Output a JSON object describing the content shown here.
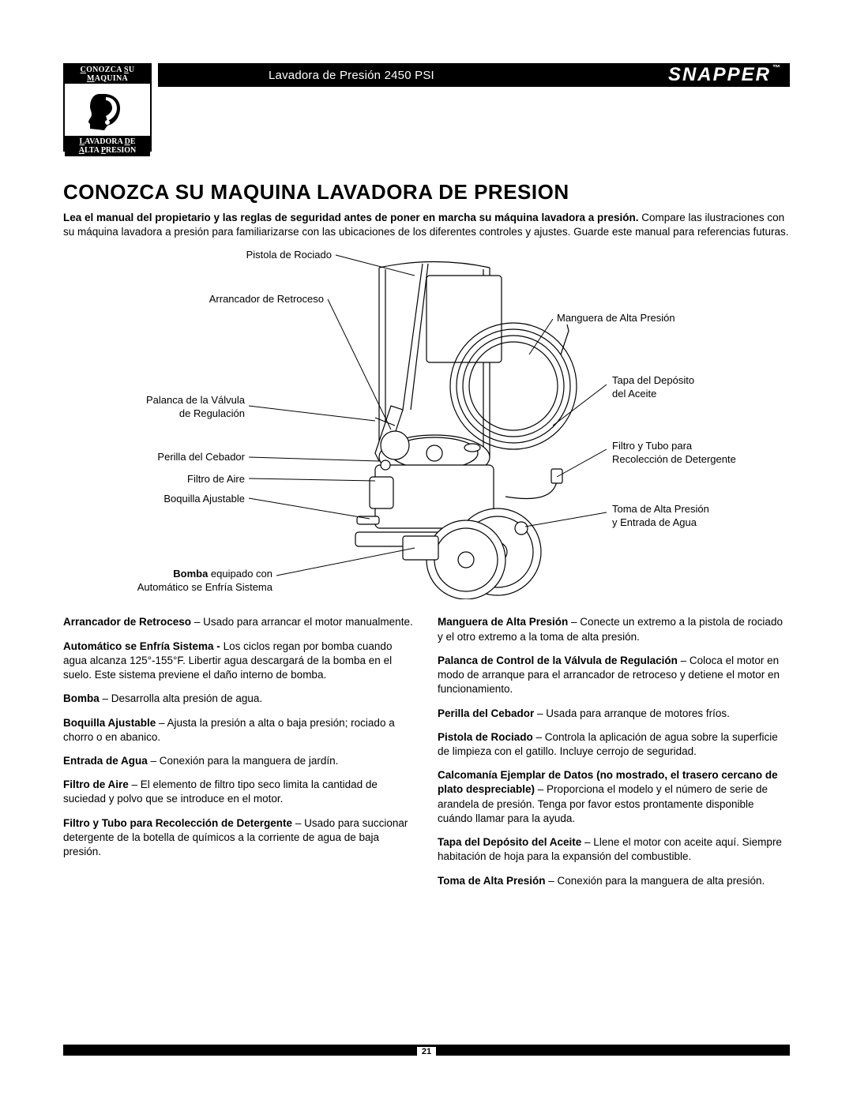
{
  "header": {
    "title": "Lavadora de Presión 2450 PSI",
    "brand": "SNAPPER",
    "brand_tm": "™"
  },
  "side_icon": {
    "top_line": "CONOZCA SU MAQUINA",
    "bottom_line1": "LAVADORA DE",
    "bottom_line2": "ALTA PRESION"
  },
  "title": "CONOZCA SU MAQUINA LAVADORA DE PRESION",
  "intro": {
    "bold": "Lea el manual del propietario y las reglas de seguridad antes de poner en marcha su máquina lavadora a presión.",
    "rest1": "Compare las ilustraciones con su máquina lavadora a presión para familiarizarse con las ubicaciones de los diferentes controles y ajustes. Guarde este manual para referencias futuras."
  },
  "labels": {
    "pistola": "Pistola de Rociado",
    "arrancador": "Arrancador de Retroceso",
    "palanca1": "Palanca de la Válvula",
    "palanca2": "de Regulación",
    "perilla": "Perilla del Cebador",
    "filtro_aire": "Filtro de Aire",
    "boquilla": "Boquilla Ajustable",
    "bomba_b": "Bomba",
    "bomba_rest": " equipado con",
    "bomba2": "Automático se Enfría Sistema",
    "manguera": "Manguera de Alta Presión",
    "tapa1": "Tapa del Depósito",
    "tapa2": "del Aceite",
    "filtro_det1": "Filtro y Tubo para",
    "filtro_det2": "Recolección de Detergente",
    "toma1": "Toma de Alta Presión",
    "toma2": "y Entrada de Agua"
  },
  "descriptions_left": [
    {
      "term": "Arrancador de Retroceso",
      "text": " – Usado para arrancar el motor manualmente."
    },
    {
      "term": "Automático se Enfría Sistema -",
      "text": " Los ciclos regan por bomba cuando agua alcanza 125°-155°F. Libertir agua descargará de la bomba en el suelo. Este sistema previene el daño interno de bomba."
    },
    {
      "term": "Bomba",
      "text": " – Desarrolla alta presión de agua."
    },
    {
      "term": "Boquilla Ajustable",
      "text": " – Ajusta la presión a alta o baja presión; rociado a chorro o en abanico."
    },
    {
      "term": "Entrada de Agua",
      "text": " – Conexión para la manguera de jardín."
    },
    {
      "term": "Filtro de Aire",
      "text": " – El elemento de filtro tipo seco limita la cantidad de suciedad y polvo que se introduce en el motor."
    },
    {
      "term": "Filtro y Tubo para Recolección de Detergente",
      "text": " – Usado para succionar detergente de la botella de químicos a la corriente de agua de baja presión."
    }
  ],
  "descriptions_right": [
    {
      "term": "Manguera de Alta Presión",
      "text": " – Conecte un extremo a la pistola de rociado y el otro extremo a la toma de alta presión."
    },
    {
      "term": "Palanca de Control de la Válvula de Regulación",
      "text": " – Coloca el motor en modo de arranque para el arrancador de retroceso y detiene el motor en funcionamiento."
    },
    {
      "term": "Perilla del Cebador",
      "text": " – Usada para arranque de motores fríos."
    },
    {
      "term": "Pistola de Rociado",
      "text": " – Controla la aplicación de agua sobre la superficie de limpieza con el gatillo. Incluye cerrojo de seguridad."
    },
    {
      "term": "Calcomanía Ejemplar de Datos (no mostrado, el trasero cercano de plato despreciable)",
      "text": " – Proporciona el modelo y el número de serie de arandela de presión. Tenga por favor estos prontamente disponible cuándo llamar para la ayuda."
    },
    {
      "term": "Tapa del Depósito del Aceite",
      "text": " – Llene el motor con aceite aquí. Siempre habitación de hoja para la expansión del combustible."
    },
    {
      "term": "Toma de Alta Presión",
      "text": " – Conexión para la manguera de alta presión."
    }
  ],
  "page_number": "21"
}
